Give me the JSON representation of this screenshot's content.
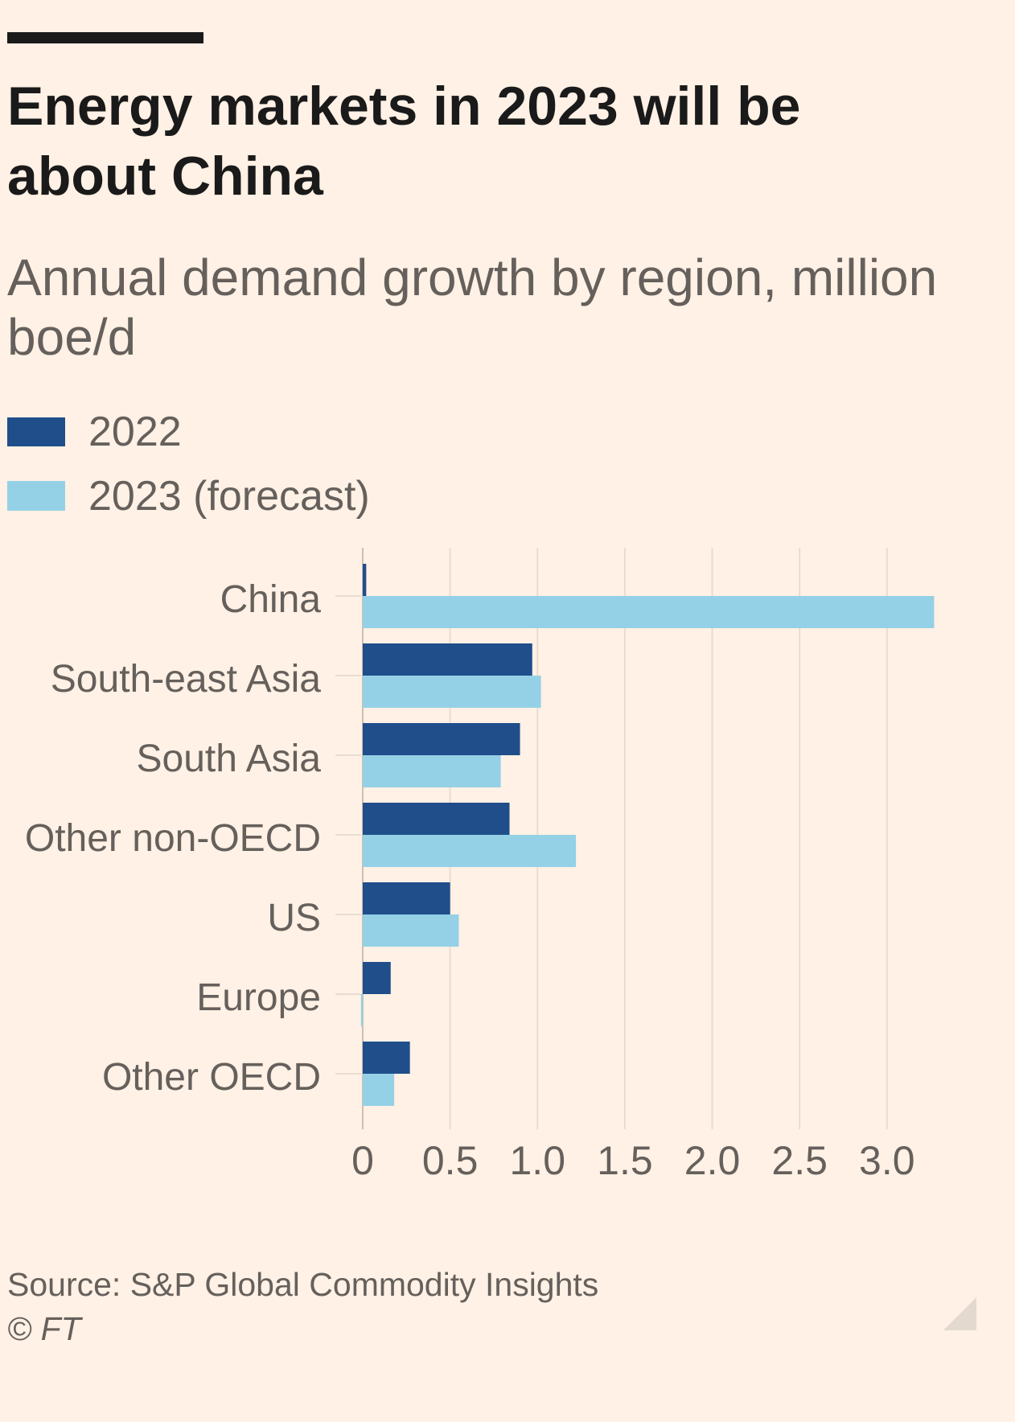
{
  "chart_data": {
    "type": "bar",
    "orientation": "horizontal",
    "title": "Energy markets in 2023 will be about China",
    "subtitle": "Annual demand growth by region, million boe/d",
    "categories": [
      "China",
      "South-east Asia",
      "South Asia",
      "Other non-OECD",
      "US",
      "Europe",
      "Other OECD"
    ],
    "series": [
      {
        "name": "2022",
        "color": "#1f4e8b",
        "values": [
          0.02,
          0.97,
          0.9,
          0.84,
          0.5,
          0.16,
          0.27
        ]
      },
      {
        "name": "2023 (forecast)",
        "color": "#95d1e6",
        "values": [
          3.27,
          1.02,
          0.79,
          1.22,
          0.55,
          -0.01,
          0.18
        ]
      }
    ],
    "xticks": [
      0,
      0.5,
      1,
      1.5,
      2,
      2.5,
      3
    ],
    "xtick_labels": [
      "0",
      "0.5",
      "1.0",
      "1.5",
      "2.0",
      "2.5",
      "3.0"
    ],
    "xlim": [
      0,
      3.3
    ],
    "grid": true,
    "legend_position": "top-left"
  },
  "footer": {
    "source": "Source: S&P Global Commodity Insights",
    "copyright": "© FT"
  },
  "colors": {
    "background": "#fff1e5",
    "title_rule": "#1a1a1a",
    "title_text": "#1a1a1a",
    "muted_text": "#66605c",
    "gridline": "#e8dcd1",
    "zero_line": "#cdbfb1",
    "corner_triangle": "#e3d9cf"
  }
}
